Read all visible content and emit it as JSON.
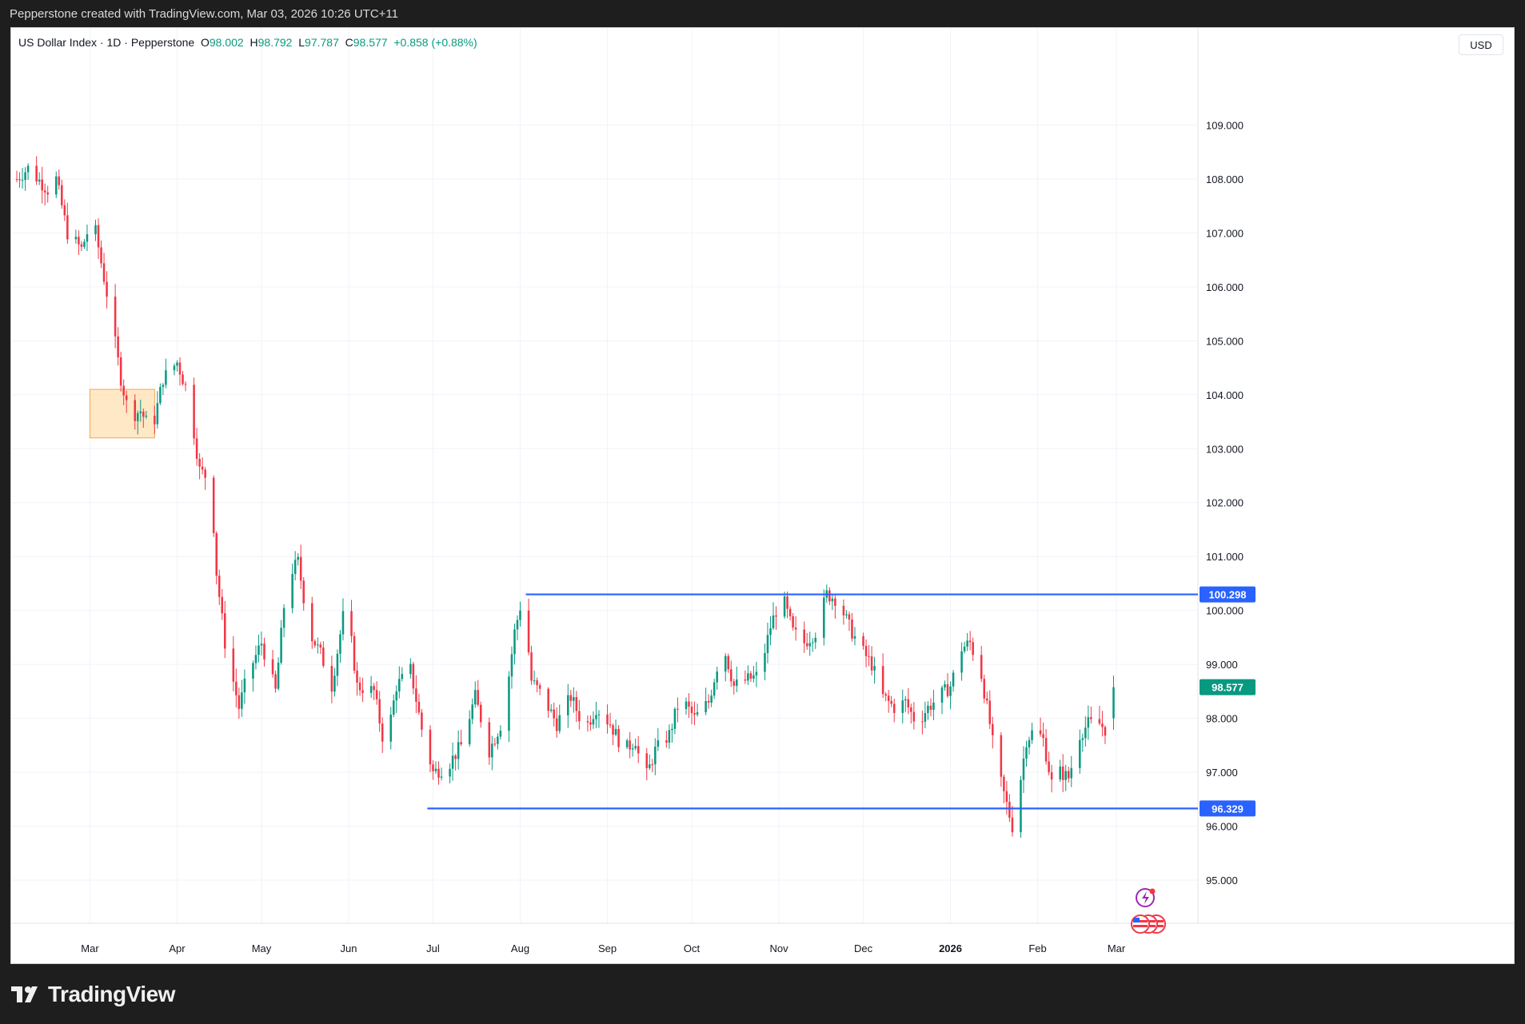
{
  "header": {
    "attribution": "Pepperstone created with TradingView.com, Mar 03, 2026 10:26 UTC+11"
  },
  "legend": {
    "symbol": "US Dollar Index · 1D · Pepperstone",
    "open_label": "O",
    "open": "98.002",
    "high_label": "H",
    "high": "98.792",
    "low_label": "L",
    "low": "97.787",
    "close_label": "C",
    "close": "98.577",
    "change": "+0.858 (+0.88%)"
  },
  "currency_button": "USD",
  "footer": {
    "brand": "TradingView",
    "logo_icon": "tradingview-logo-icon"
  },
  "colors": {
    "up": "#089981",
    "down": "#f23645",
    "line": "#2962ff",
    "highlight": "#ffe0b2",
    "highlight_border": "#f0a850"
  },
  "icons": {
    "indicator": "lightning-icon",
    "events": "us-flag-event-icons"
  },
  "chart_data": {
    "type": "candlestick",
    "ylim": [
      94.2,
      110.8
    ],
    "yticks": [
      "95.000",
      "96.000",
      "97.000",
      "98.000",
      "99.000",
      "100.000",
      "101.000",
      "102.000",
      "103.000",
      "104.000",
      "105.000",
      "106.000",
      "107.000",
      "108.000",
      "109.000"
    ],
    "x_labels": [
      {
        "label": "Mar",
        "day": 19
      },
      {
        "label": "Apr",
        "day": 50
      },
      {
        "label": "May",
        "day": 80
      },
      {
        "label": "Jun",
        "day": 111
      },
      {
        "label": "Jul",
        "day": 141
      },
      {
        "label": "Aug",
        "day": 172
      },
      {
        "label": "Sep",
        "day": 203
      },
      {
        "label": "Oct",
        "day": 233
      },
      {
        "label": "Nov",
        "day": 264
      },
      {
        "label": "Dec",
        "day": 294
      },
      {
        "label": "2026",
        "day": 325,
        "bold": true
      },
      {
        "label": "Feb",
        "day": 356
      },
      {
        "label": "Mar",
        "day": 384
      }
    ],
    "x_range_days": [
      -9,
      413
    ],
    "last_price": {
      "value": 98.577,
      "label": "98.577"
    },
    "levels": [
      {
        "value": 100.298,
        "label": "100.298",
        "from_day": 174,
        "to_day": 413
      },
      {
        "value": 96.329,
        "label": "96.329",
        "from_day": 139,
        "to_day": 413
      }
    ],
    "highlight_box": {
      "from_day": 19,
      "to_day": 42,
      "low": 103.2,
      "high": 104.1
    },
    "anchors": [
      [
        -9,
        107.9
      ],
      [
        -3,
        108.2
      ],
      [
        4,
        107.8
      ],
      [
        7,
        108.0
      ],
      [
        11,
        107.0
      ],
      [
        16,
        106.7
      ],
      [
        20,
        107.3
      ],
      [
        26,
        105.6
      ],
      [
        30,
        104.3
      ],
      [
        33,
        103.6
      ],
      [
        37,
        103.7
      ],
      [
        41,
        103.3
      ],
      [
        45,
        104.3
      ],
      [
        50,
        104.6
      ],
      [
        54,
        104.0
      ],
      [
        58,
        102.6
      ],
      [
        62,
        102.4
      ],
      [
        64,
        100.7
      ],
      [
        67,
        99.4
      ],
      [
        72,
        98.2
      ],
      [
        75,
        98.8
      ],
      [
        80,
        99.4
      ],
      [
        85,
        98.5
      ],
      [
        89,
        100.6
      ],
      [
        93,
        100.9
      ],
      [
        97,
        99.6
      ],
      [
        101,
        99.2
      ],
      [
        105,
        98.6
      ],
      [
        110,
        100.2
      ],
      [
        114,
        98.6
      ],
      [
        120,
        98.5
      ],
      [
        124,
        97.4
      ],
      [
        128,
        98.6
      ],
      [
        133,
        98.9
      ],
      [
        137,
        97.8
      ],
      [
        141,
        97.0
      ],
      [
        146,
        97.1
      ],
      [
        151,
        97.5
      ],
      [
        156,
        98.4
      ],
      [
        161,
        97.4
      ],
      [
        166,
        98.0
      ],
      [
        170,
        99.6
      ],
      [
        173,
        100.3
      ],
      [
        176,
        98.7
      ],
      [
        180,
        98.4
      ],
      [
        185,
        97.9
      ],
      [
        190,
        98.4
      ],
      [
        195,
        97.8
      ],
      [
        199,
        98.2
      ],
      [
        204,
        97.9
      ],
      [
        209,
        97.4
      ],
      [
        213,
        97.6
      ],
      [
        216,
        96.8
      ],
      [
        220,
        97.4
      ],
      [
        225,
        97.7
      ],
      [
        229,
        98.4
      ],
      [
        234,
        98.0
      ],
      [
        239,
        98.3
      ],
      [
        244,
        99.4
      ],
      [
        248,
        98.6
      ],
      [
        252,
        98.7
      ],
      [
        257,
        98.8
      ],
      [
        261,
        99.7
      ],
      [
        265,
        100.3
      ],
      [
        269,
        99.6
      ],
      [
        273,
        99.4
      ],
      [
        277,
        99.6
      ],
      [
        281,
        100.3
      ],
      [
        285,
        100.2
      ],
      [
        289,
        99.7
      ],
      [
        293,
        99.3
      ],
      [
        297,
        99.0
      ],
      [
        301,
        98.4
      ],
      [
        305,
        98.2
      ],
      [
        309,
        98.3
      ],
      [
        313,
        97.9
      ],
      [
        317,
        98.2
      ],
      [
        321,
        98.4
      ],
      [
        325,
        98.6
      ],
      [
        329,
        99.3
      ],
      [
        332,
        99.4
      ],
      [
        336,
        98.8
      ],
      [
        339,
        97.9
      ],
      [
        341,
        97.2
      ],
      [
        344,
        96.6
      ],
      [
        347,
        96.0
      ],
      [
        350,
        96.9
      ],
      [
        352,
        97.6
      ],
      [
        355,
        97.8
      ],
      [
        358,
        97.6
      ],
      [
        361,
        96.8
      ],
      [
        364,
        97.0
      ],
      [
        367,
        96.9
      ],
      [
        371,
        97.7
      ],
      [
        374,
        97.9
      ],
      [
        378,
        97.9
      ],
      [
        380,
        97.8
      ],
      [
        383,
        98.6
      ]
    ]
  }
}
